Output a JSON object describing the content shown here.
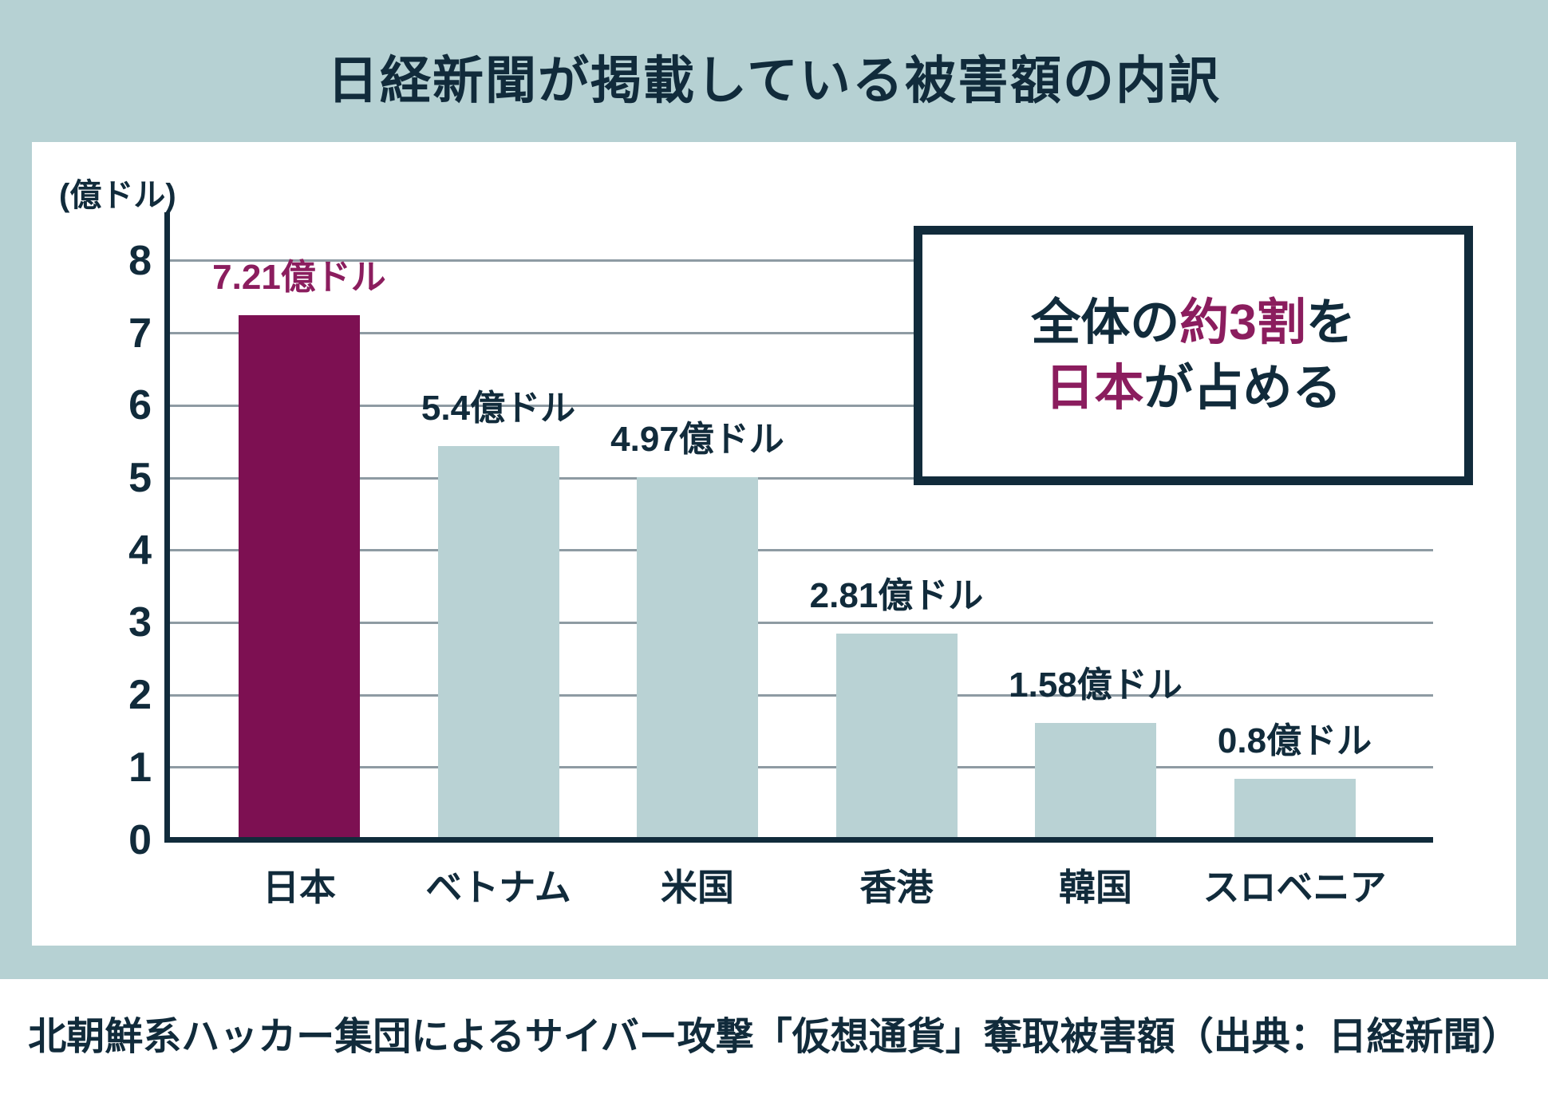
{
  "title": "日経新聞が掲載している被害額の内訳",
  "unit_label": "(億ドル)",
  "callout": {
    "line1_pre": "全体の",
    "line1_accent": "約3割",
    "line1_post": "を",
    "line2_accent": "日本",
    "line2_post": "が占める"
  },
  "footer": "北朝鮮系ハッカー集団によるサイバー攻撃「仮想通貨」奪取被害額（出典：日経新聞）",
  "colors": {
    "background_teal": "#b6d1d3",
    "panel_white": "#ffffff",
    "navy_text": "#112b3b",
    "highlight_bar": "#7d1052",
    "accent_text": "#8b1d5e",
    "light_bar": "#b9d2d4",
    "gridline": "#8e9ba3"
  },
  "chart_data": {
    "type": "bar",
    "title": "日経新聞が掲載している被害額の内訳",
    "categories": [
      "日本",
      "ベトナム",
      "米国",
      "香港",
      "韓国",
      "スロベニア"
    ],
    "values": [
      7.21,
      5.4,
      4.97,
      2.81,
      1.58,
      0.8
    ],
    "value_labels": [
      "7.21億ドル",
      "5.4億ドル",
      "4.97億ドル",
      "2.81億ドル",
      "1.58億ドル",
      "0.8億ドル"
    ],
    "highlight_index": 0,
    "xlabel": "",
    "ylabel": "(億ドル)",
    "ylim": [
      0,
      8
    ],
    "yticks": [
      0,
      1,
      2,
      3,
      4,
      5,
      6,
      7,
      8
    ],
    "grid": true,
    "legend": false,
    "annotation": "全体の約3割を日本が占める"
  }
}
